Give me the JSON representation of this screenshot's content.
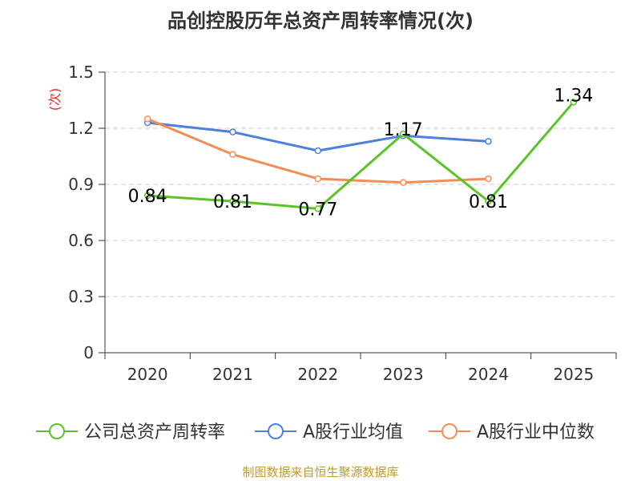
{
  "chart_data": {
    "type": "line",
    "title": "品创控股历年总资产周转率情况(次)",
    "ylabel": "(次)",
    "xlabel": "",
    "categories": [
      "2020",
      "2021",
      "2022",
      "2023",
      "2024",
      "2025"
    ],
    "ylim": [
      0,
      1.5
    ],
    "yticks": [
      "0",
      "0.3",
      "0.6",
      "0.9",
      "1.2",
      "1.5"
    ],
    "grid": true,
    "legend_position": "bottom",
    "series": [
      {
        "name": "公司总资产周转率",
        "color": "#5ac328",
        "values": [
          0.84,
          0.81,
          0.77,
          1.17,
          0.81,
          1.34
        ],
        "labels": [
          "0.84",
          "0.81",
          "0.77",
          "1.17",
          "0.81",
          "1.34"
        ]
      },
      {
        "name": "A股行业均值",
        "color": "#4d7fdc",
        "values": [
          1.23,
          1.18,
          1.08,
          1.16,
          1.13,
          null
        ]
      },
      {
        "name": "A股行业中位数",
        "color": "#f68c55",
        "values": [
          1.25,
          1.06,
          0.93,
          0.91,
          0.93,
          null
        ]
      }
    ],
    "source": "制图数据来自恒生聚源数据库"
  }
}
